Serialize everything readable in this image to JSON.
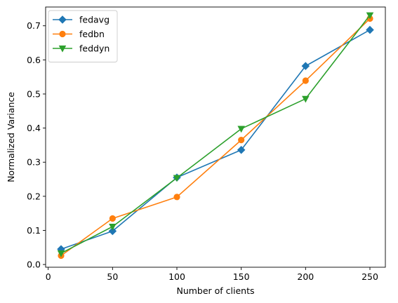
{
  "chart_data": {
    "type": "line",
    "title": "",
    "xlabel": "Number of clients",
    "ylabel": "Normalized Variance",
    "xlim": [
      -2,
      262
    ],
    "ylim": [
      -0.008,
      0.755
    ],
    "xticks": [
      0,
      50,
      100,
      150,
      200,
      250
    ],
    "yticks": [
      0.0,
      0.1,
      0.2,
      0.3,
      0.4,
      0.5,
      0.6,
      0.7
    ],
    "grid": false,
    "legend_position": "top-left",
    "x": [
      10,
      50,
      100,
      150,
      200,
      250
    ],
    "series": [
      {
        "name": "fedavg",
        "marker": "diamond",
        "color": "#1f77b4",
        "values": [
          0.045,
          0.098,
          0.255,
          0.336,
          0.582,
          0.688
        ]
      },
      {
        "name": "fedbn",
        "marker": "circle",
        "color": "#ff7f0e",
        "values": [
          0.026,
          0.135,
          0.198,
          0.365,
          0.539,
          0.721
        ]
      },
      {
        "name": "feddyn",
        "marker": "triangle-down",
        "color": "#2ca02c",
        "values": [
          0.033,
          0.111,
          0.254,
          0.398,
          0.486,
          0.731
        ]
      }
    ]
  }
}
